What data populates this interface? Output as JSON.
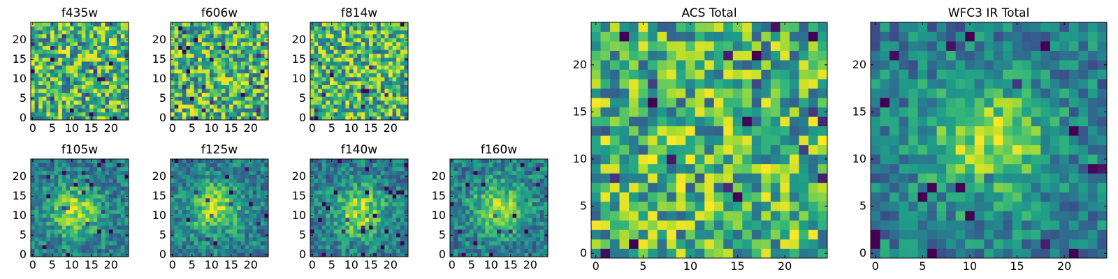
{
  "chart_data": [
    {
      "type": "heatmap",
      "title": "f435w",
      "grid": false,
      "colormap": "viridis",
      "xticks": [
        "0",
        "5",
        "10",
        "15",
        "20"
      ],
      "yticks": [
        "0",
        "5",
        "10",
        "15",
        "20"
      ],
      "shape": [
        25,
        25
      ],
      "xlim": [
        -0.5,
        24.5
      ],
      "ylim": [
        -0.5,
        24.5
      ],
      "pattern": "uniform-noise",
      "seed": 11
    },
    {
      "type": "heatmap",
      "title": "f606w",
      "grid": false,
      "colormap": "viridis",
      "xticks": [
        "0",
        "5",
        "10",
        "15",
        "20"
      ],
      "yticks": [
        "0",
        "5",
        "10",
        "15",
        "20"
      ],
      "shape": [
        25,
        25
      ],
      "xlim": [
        -0.5,
        24.5
      ],
      "ylim": [
        -0.5,
        24.5
      ],
      "pattern": "uniform-noise",
      "seed": 23
    },
    {
      "type": "heatmap",
      "title": "f814w",
      "grid": false,
      "colormap": "viridis",
      "xticks": [
        "0",
        "5",
        "10",
        "15",
        "20"
      ],
      "yticks": [
        "0",
        "5",
        "10",
        "15",
        "20"
      ],
      "shape": [
        25,
        25
      ],
      "xlim": [
        -0.5,
        24.5
      ],
      "ylim": [
        -0.5,
        24.5
      ],
      "pattern": "uniform-noise",
      "seed": 37
    },
    {
      "type": "heatmap",
      "title": "f105w",
      "grid": false,
      "colormap": "viridis",
      "xticks": [
        "0",
        "5",
        "10",
        "15",
        "20"
      ],
      "yticks": [
        "0",
        "5",
        "10",
        "15",
        "20"
      ],
      "shape": [
        25,
        25
      ],
      "xlim": [
        -0.5,
        24.5
      ],
      "ylim": [
        -0.5,
        24.5
      ],
      "pattern": "central-source",
      "center": [
        11,
        11
      ],
      "seed": 41
    },
    {
      "type": "heatmap",
      "title": "f125w",
      "grid": false,
      "colormap": "viridis",
      "xticks": [
        "0",
        "5",
        "10",
        "15",
        "20"
      ],
      "yticks": [
        "0",
        "5",
        "10",
        "15",
        "20"
      ],
      "shape": [
        25,
        25
      ],
      "xlim": [
        -0.5,
        24.5
      ],
      "ylim": [
        -0.5,
        24.5
      ],
      "pattern": "central-source",
      "center": [
        11,
        12
      ],
      "seed": 53
    },
    {
      "type": "heatmap",
      "title": "f140w",
      "grid": false,
      "colormap": "viridis",
      "xticks": [
        "0",
        "5",
        "10",
        "15",
        "20"
      ],
      "yticks": [
        "0",
        "5",
        "10",
        "15",
        "20"
      ],
      "shape": [
        25,
        25
      ],
      "xlim": [
        -0.5,
        24.5
      ],
      "ylim": [
        -0.5,
        24.5
      ],
      "pattern": "central-source",
      "center": [
        12,
        11
      ],
      "seed": 67
    },
    {
      "type": "heatmap",
      "title": "f160w",
      "grid": false,
      "colormap": "viridis",
      "xticks": [
        "0",
        "5",
        "10",
        "15",
        "20"
      ],
      "yticks": [
        "0",
        "5",
        "10",
        "15",
        "20"
      ],
      "shape": [
        25,
        25
      ],
      "xlim": [
        -0.5,
        24.5
      ],
      "ylim": [
        -0.5,
        24.5
      ],
      "pattern": "central-source",
      "center": [
        12,
        12
      ],
      "seed": 79
    },
    {
      "type": "heatmap",
      "title": "ACS Total",
      "grid": false,
      "colormap": "viridis",
      "xticks": [
        "0",
        "5",
        "10",
        "15",
        "20"
      ],
      "yticks": [
        "0",
        "5",
        "10",
        "15",
        "20"
      ],
      "shape": [
        25,
        25
      ],
      "xlim": [
        -0.5,
        24.5
      ],
      "ylim": [
        -0.5,
        24.5
      ],
      "pattern": "uniform-noise",
      "seed": 97
    },
    {
      "type": "heatmap",
      "title": "WFC3 IR Total",
      "grid": false,
      "colormap": "viridis",
      "xticks": [
        "0",
        "5",
        "10",
        "15",
        "20"
      ],
      "yticks": [
        "0",
        "5",
        "10",
        "15",
        "20"
      ],
      "shape": [
        25,
        25
      ],
      "xlim": [
        -0.5,
        24.5
      ],
      "ylim": [
        -0.5,
        24.5
      ],
      "pattern": "central-source",
      "center": [
        12,
        12
      ],
      "seed": 101
    }
  ]
}
